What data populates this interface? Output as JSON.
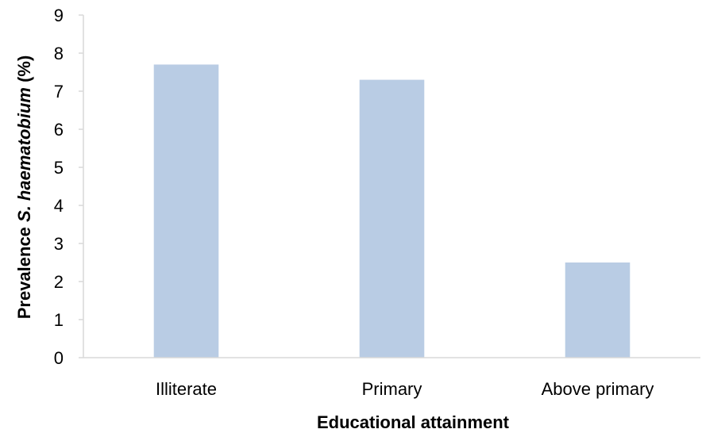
{
  "chart_data": {
    "type": "bar",
    "categories": [
      "Illiterate",
      "Primary",
      "Above primary"
    ],
    "values": [
      7.7,
      7.3,
      2.5
    ],
    "ylim": [
      0,
      9
    ],
    "yticks": [
      "0",
      "1",
      "2",
      "3",
      "4",
      "5",
      "6",
      "7",
      "8",
      "9"
    ],
    "ylabel": {
      "prefix": "Prevalence ",
      "italic": "S. haematobium",
      "suffix": " (%)"
    },
    "xlabel": "Educational attainment",
    "grid": false,
    "legend": "none",
    "bar_color": "#b9cce4",
    "axis_color": "#d9d9d9"
  }
}
